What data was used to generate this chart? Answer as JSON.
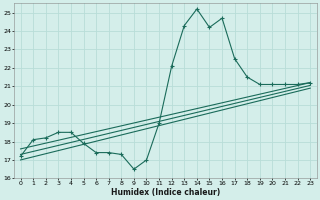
{
  "title": "",
  "xlabel": "Humidex (Indice chaleur)",
  "xlim": [
    -0.5,
    23.5
  ],
  "ylim": [
    16,
    25.5
  ],
  "xticks": [
    0,
    1,
    2,
    3,
    4,
    5,
    6,
    7,
    8,
    9,
    10,
    11,
    12,
    13,
    14,
    15,
    16,
    17,
    18,
    19,
    20,
    21,
    22,
    23
  ],
  "yticks": [
    16,
    17,
    18,
    19,
    20,
    21,
    22,
    23,
    24,
    25
  ],
  "bg_color": "#d4eeea",
  "grid_color": "#b8ddd8",
  "line_color": "#1a6b5a",
  "line1_x": [
    0,
    1,
    2,
    3,
    4,
    5,
    6,
    7,
    8,
    9,
    10,
    11,
    12,
    13,
    14,
    15,
    16,
    17,
    18,
    19,
    20,
    21,
    22,
    23
  ],
  "line1_y": [
    17.2,
    18.1,
    18.2,
    18.5,
    18.5,
    17.9,
    17.4,
    17.4,
    17.3,
    16.5,
    17.0,
    19.0,
    22.1,
    24.3,
    25.2,
    24.2,
    24.7,
    22.5,
    21.5,
    21.1,
    21.1,
    21.1,
    21.1,
    21.2
  ],
  "line2_x": [
    0,
    23
  ],
  "line2_y": [
    17.6,
    21.2
  ],
  "line3_x": [
    0,
    23
  ],
  "line3_y": [
    17.3,
    21.05
  ],
  "line4_x": [
    0,
    23
  ],
  "line4_y": [
    17.0,
    20.9
  ]
}
